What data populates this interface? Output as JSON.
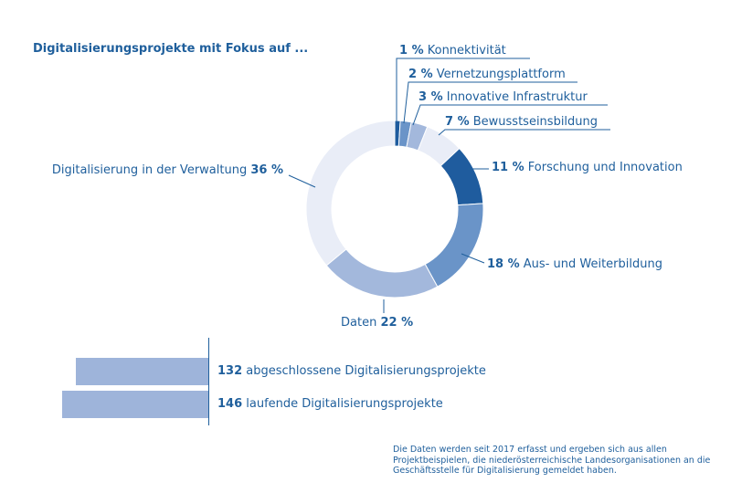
{
  "title": "Digitalisierungsprojekte mit Fokus auf  ...",
  "chart_data": [
    {
      "type": "pie",
      "subtype": "donut",
      "title": "Digitalisierungsprojekte mit Fokus auf  ...",
      "slices": [
        {
          "label": "Konnektivität",
          "pct_text": "1 %",
          "value": 1,
          "color": "#1f5c9e"
        },
        {
          "label": "Vernetzungsplattform",
          "pct_text": "2 %",
          "value": 2,
          "color": "#6a94c8"
        },
        {
          "label": "Innovative Infrastruktur",
          "pct_text": "3 %",
          "value": 3,
          "color": "#a3b8dc"
        },
        {
          "label": "Bewusstseinsbildung",
          "pct_text": "7 %",
          "value": 7,
          "color": "#e9edf7"
        },
        {
          "label": "Forschung und Innovation",
          "pct_text": "11 %",
          "value": 11,
          "color": "#1f5c9e"
        },
        {
          "label": "Aus- und Weiterbildung",
          "pct_text": "18 %",
          "value": 18,
          "color": "#6a94c8"
        },
        {
          "label": "Daten",
          "pct_text": "22 %",
          "value": 22,
          "color": "#a3b8dc"
        },
        {
          "label": "Digitalisierung in der Verwaltung",
          "pct_text": "36 %",
          "value": 36,
          "color": "#e9edf7"
        }
      ]
    },
    {
      "type": "bar",
      "orientation": "horizontal",
      "bars": [
        {
          "value": 132,
          "value_text": "132",
          "label": "abgeschlossene Digitalisierungsprojekte"
        },
        {
          "value": 146,
          "value_text": "146",
          "label": "laufende Digitalisierungsprojekte"
        }
      ],
      "color": "#9eb4da"
    }
  ],
  "footnote": "Die Daten werden seit 2017 erfasst und ergeben sich aus allen Projektbeispielen, die niederösterreichische Landesorganisationen an die Geschäftsstelle für Digitalisierung gemeldet haben."
}
